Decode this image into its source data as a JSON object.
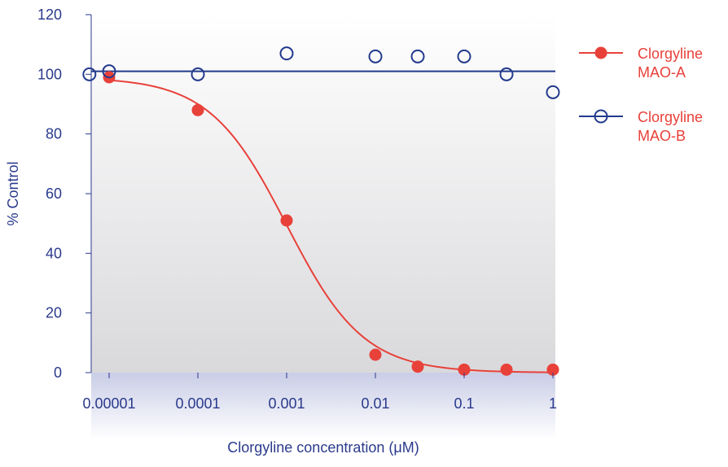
{
  "chart_data": {
    "type": "scatter",
    "xlabel": "Clorgyline concentration (μM)",
    "ylabel": "% Control",
    "xscale": "log",
    "xlim": [
      5e-06,
      1
    ],
    "ylim": [
      0,
      120
    ],
    "x_ticks": [
      1e-05,
      0.0001,
      0.001,
      0.01,
      0.1,
      1
    ],
    "x_tick_labels": [
      "0.00001",
      "0.0001",
      "0.001",
      "0.01",
      "0.1",
      "1"
    ],
    "y_ticks": [
      0,
      20,
      40,
      60,
      80,
      100,
      120
    ],
    "y_tick_labels": [
      "0",
      "20",
      "40",
      "60",
      "80",
      "100",
      "120"
    ],
    "legend_position": "right",
    "grid": false,
    "series": [
      {
        "name_line1": "Clorgyline",
        "name_line2": "MAO-A",
        "color": "#e8413a",
        "marker": "filled-circle",
        "points": [
          {
            "x": 1e-05,
            "y": 99
          },
          {
            "x": 0.0001,
            "y": 88
          },
          {
            "x": 0.001,
            "y": 51
          },
          {
            "x": 0.01,
            "y": 6
          },
          {
            "x": 0.03,
            "y": 2
          },
          {
            "x": 0.1,
            "y": 1
          },
          {
            "x": 0.3,
            "y": 1
          },
          {
            "x": 1,
            "y": 1
          }
        ],
        "fit": {
          "type": "sigmoid",
          "top": 99,
          "bottom": 0,
          "ic50": 0.001,
          "hill": 1
        }
      },
      {
        "name_line1": "Clorgyline",
        "name_line2": "MAO-B",
        "color": "#233a8c",
        "marker": "open-circle",
        "points": [
          {
            "x": 6e-06,
            "y": 100
          },
          {
            "x": 1e-05,
            "y": 101
          },
          {
            "x": 0.0001,
            "y": 100
          },
          {
            "x": 0.001,
            "y": 107
          },
          {
            "x": 0.01,
            "y": 106
          },
          {
            "x": 0.03,
            "y": 106
          },
          {
            "x": 0.1,
            "y": 106
          },
          {
            "x": 0.3,
            "y": 100
          },
          {
            "x": 1,
            "y": 94
          }
        ],
        "fit": {
          "type": "constant",
          "y": 101
        }
      }
    ]
  }
}
